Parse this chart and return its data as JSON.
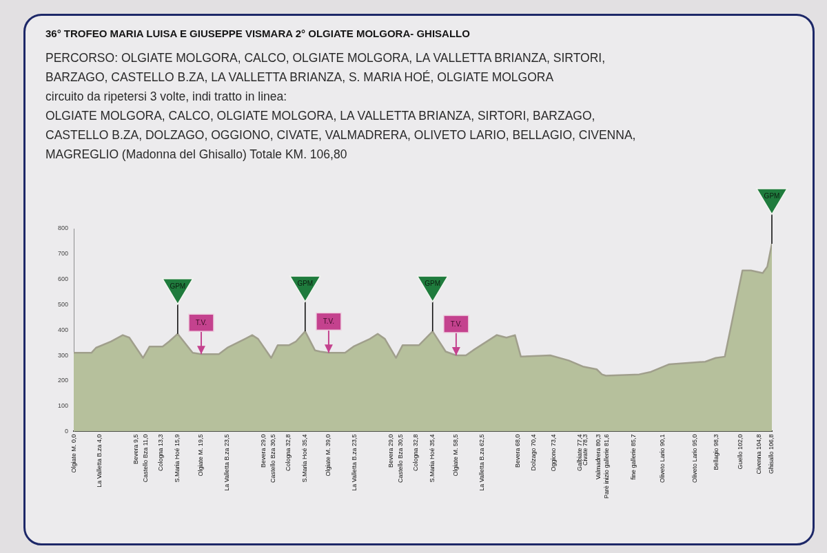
{
  "chart_data": {
    "type": "area",
    "title": "36° TROFEO MARIA LUISA E GIUSEPPE VISMARA 2° OLGIATE MOLGORA- GHISALLO",
    "subtitle": "PERCORSO: OLGIATE MOLGORA, CALCO, OLGIATE MOLGORA, LA VALLETTA BRIANZA, SIRTORI,\nBARZAGO, CASTELLO B.ZA, LA VALLETTA BRIANZA, S. MARIA HOÉ, OLGIATE MOLGORA\ncircuito da ripetersi 3 volte, indi tratto in linea:\nOLGIATE MOLGORA, CALCO, OLGIATE MOLGORA, LA VALLETTA BRIANZA, SIRTORI, BARZAGO,\nCASTELLO B.ZA, DOLZAGO, OGGIONO, CIVATE, VALMADRERA, OLIVETO LARIO, BELLAGIO, CIVENNA,\nMAGREGLIO (Madonna del Ghisallo) Totale KM. 106,80",
    "x": [
      0,
      2.7,
      3.4,
      5.7,
      7.5,
      8.5,
      10.6,
      11.6,
      13.6,
      14.6,
      15.9,
      18.2,
      19.5,
      22.2,
      23.5,
      26.2,
      27.3,
      28.2,
      30.2,
      31.2,
      32.9,
      34.0,
      35.4,
      36.9,
      37.7,
      39.0,
      41.5,
      42.8,
      45.3,
      46.5,
      47.6,
      49.3,
      50.3,
      52.8,
      54.9,
      56.9,
      58.5,
      60.0,
      61.1,
      64.7,
      66.2,
      67.5,
      68.4,
      72.9,
      75.7,
      78.0,
      80.0,
      80.8,
      81.4,
      86.5,
      88.3,
      91.1,
      96.6,
      98.2,
      99.6,
      102.3,
      103.6,
      105.4,
      106.1,
      106.8
    ],
    "values": [
      310,
      310,
      330,
      355,
      380,
      370,
      290,
      335,
      335,
      355,
      385,
      310,
      305,
      305,
      330,
      365,
      380,
      365,
      290,
      340,
      340,
      355,
      395,
      320,
      315,
      310,
      310,
      335,
      365,
      385,
      365,
      290,
      340,
      340,
      395,
      315,
      300,
      300,
      320,
      380,
      370,
      380,
      295,
      300,
      280,
      255,
      245,
      225,
      220,
      225,
      235,
      265,
      275,
      290,
      295,
      635,
      635,
      625,
      650,
      740
    ],
    "color": "#b6c09c",
    "marker": "none",
    "xlim": [
      0,
      106.8
    ],
    "xticks": [
      {
        "value": 0,
        "label": "Olgiate M. 0,0"
      },
      {
        "value": 4.0,
        "label": "La Valletta B.za 4,0"
      },
      {
        "value": 9.5,
        "label": "Bevera 9,5"
      },
      {
        "value": 11.0,
        "label": "Castello Bza 11,0"
      },
      {
        "value": 13.3,
        "label": "Cologna 13,3"
      },
      {
        "value": 15.9,
        "label": "S.Maria Hoé 15,9"
      },
      {
        "value": 19.5,
        "label": "Olgiate M. 19,5"
      },
      {
        "value": 23.5,
        "label": "La Valletta B.za 23,5"
      },
      {
        "value": 29.0,
        "label": "Bevera 29,0"
      },
      {
        "value": 30.5,
        "label": "Castello Bza 30,5"
      },
      {
        "value": 32.8,
        "label": "Cologna 32,8"
      },
      {
        "value": 35.4,
        "label": "S.Maria Hoé 35,4"
      },
      {
        "value": 39.0,
        "label": "Olgiate M. 39,0"
      },
      {
        "value": 43.0,
        "label": "La Valletta B.za 23,5"
      },
      {
        "value": 48.5,
        "label": "Bevera 29,0"
      },
      {
        "value": 50.0,
        "label": "Castello Bza 30,5"
      },
      {
        "value": 52.3,
        "label": "Cologna 32,8"
      },
      {
        "value": 54.9,
        "label": "S.Maria Hoé 35,4"
      },
      {
        "value": 58.5,
        "label": "Olgiate M. 58,5"
      },
      {
        "value": 62.5,
        "label": "La Valletta B.za 62,5"
      },
      {
        "value": 68.0,
        "label": "Bevera 68,0"
      },
      {
        "value": 70.4,
        "label": "Dolzago 70,4"
      },
      {
        "value": 73.4,
        "label": "Oggiono 73,4"
      },
      {
        "value": 77.4,
        "label": "Galbiate 77,4"
      },
      {
        "value": 78.3,
        "label": "Civate 78,3"
      },
      {
        "value": 80.3,
        "label": "Valmadrera 80,3"
      },
      {
        "value": 81.6,
        "label": "Parè inizio gallerie 81,6"
      },
      {
        "value": 85.7,
        "label": "fine gallerie 85,7"
      },
      {
        "value": 90.1,
        "label": "Oliveto Lario 90,1"
      },
      {
        "value": 95.0,
        "label": "Oliveto Lario 95,0"
      },
      {
        "value": 98.3,
        "label": "Bellagio 98,3"
      },
      {
        "value": 102.0,
        "label": "Guello 102,0"
      },
      {
        "value": 104.8,
        "label": "Civenna 104,8"
      },
      {
        "value": 106.8,
        "label": "Ghisallo 106,8"
      }
    ],
    "ylim": [
      0,
      800
    ],
    "yticks": [
      0,
      100,
      200,
      300,
      400,
      500,
      600,
      700,
      800
    ],
    "annotations": [
      {
        "text": "GPM",
        "x": 15.9,
        "y": 385
      },
      {
        "text": "T.V.",
        "x": 19.5,
        "y": 305
      },
      {
        "text": "GPM",
        "x": 35.4,
        "y": 395
      },
      {
        "text": "T.V.",
        "x": 39.0,
        "y": 310
      },
      {
        "text": "GPM",
        "x": 54.9,
        "y": 395
      },
      {
        "text": "T.V.",
        "x": 58.5,
        "y": 300
      },
      {
        "text": "GPM",
        "x": 106.8,
        "y": 740
      }
    ]
  }
}
